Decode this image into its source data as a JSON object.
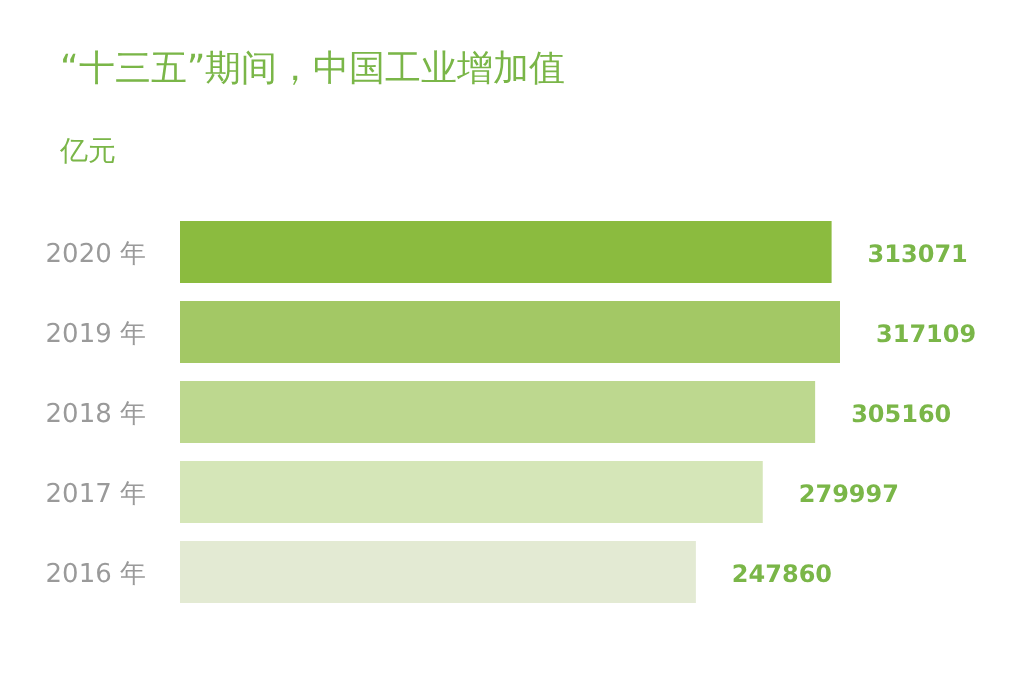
{
  "chart_data": {
    "type": "bar",
    "orientation": "horizontal",
    "title": "“十三五”期间，中国工业增加值",
    "ylabel": "亿元",
    "categories": [
      "2020 年",
      "2019 年",
      "2018 年",
      "2017 年",
      "2016 年"
    ],
    "values": [
      313071,
      317109,
      305160,
      279997,
      247860
    ],
    "colors": [
      "#8bbb3f",
      "#a3c865",
      "#bdd88f",
      "#d5e6b8",
      "#e3ead3"
    ],
    "data_labels": true
  }
}
